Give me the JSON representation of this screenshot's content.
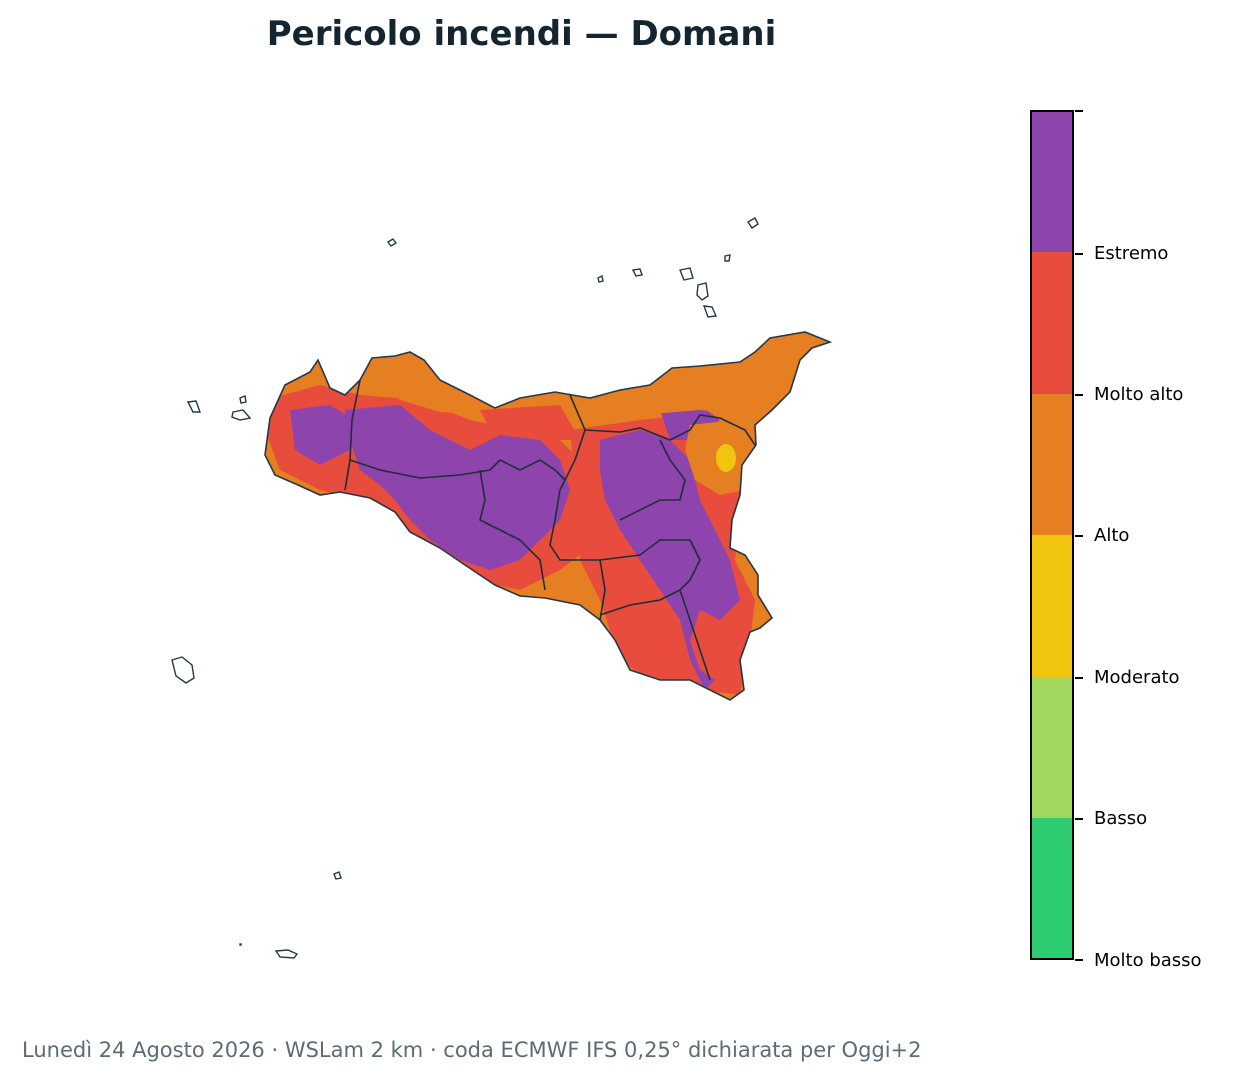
{
  "title": "Pericolo incendi — Domani",
  "footer": "Lunedì 24 Agosto 2026 · WSLam 2 km · coda ECMWF IFS 0,25° dichiarata per Oggi+2",
  "legend": {
    "levels": [
      {
        "label": "Molto basso",
        "color": "#2ecc71"
      },
      {
        "label": "Basso",
        "color": "#a3d65c"
      },
      {
        "label": "Moderato",
        "color": "#f1c40f"
      },
      {
        "label": "Alto",
        "color": "#e67e22"
      },
      {
        "label": "Molto alto",
        "color": "#e74c3c"
      },
      {
        "label": "Estremo",
        "color": "#8e44ad"
      }
    ]
  },
  "map": {
    "region": "Sicilia",
    "boundary_color": "#253846"
  }
}
